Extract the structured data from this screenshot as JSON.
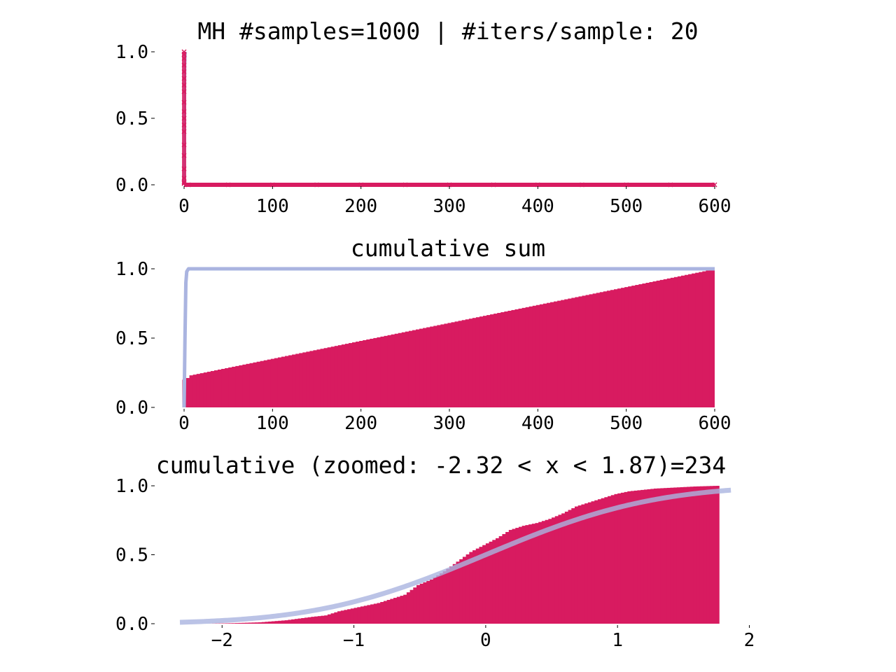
{
  "colors": {
    "samples": "#d81b60",
    "reference": "#aab4e0",
    "background": "#ffffff",
    "text": "#000000"
  },
  "chart_data": [
    {
      "type": "scatter",
      "title": "MH #samples=1000 | #iters/sample: 20",
      "xlim": [
        0,
        600
      ],
      "ylim": [
        0,
        1
      ],
      "xticks": [
        0,
        100,
        200,
        300,
        400,
        500,
        600
      ],
      "xtick_labels": [
        "0",
        "100",
        "200",
        "300",
        "400",
        "500",
        "600"
      ],
      "yticks": [
        0,
        0.5,
        1
      ],
      "ytick_labels": [
        "0.0",
        "0.5",
        "1.0"
      ],
      "grid": false,
      "series": [
        {
          "marker": "x",
          "color": "#d81b60",
          "description_points": [
            [
              0,
              1.0
            ],
            [
              0,
              0.98
            ],
            [
              0,
              0.95
            ],
            [
              0,
              0.9
            ],
            [
              0,
              0.85
            ],
            [
              0,
              0.8
            ],
            [
              0,
              0.75
            ],
            [
              0,
              0.7
            ],
            [
              0,
              0.62
            ],
            [
              0,
              0.55
            ],
            [
              0,
              0.5
            ],
            [
              0,
              0.45
            ],
            [
              0,
              0.4
            ],
            [
              0,
              0.3
            ],
            [
              0,
              0.22
            ],
            [
              0,
              0.12
            ],
            [
              0,
              0.05
            ],
            [
              0,
              0.02
            ],
            [
              0,
              0.01
            ],
            [
              5,
              0.0
            ],
            [
              50,
              0.0
            ],
            [
              100,
              0.0
            ],
            [
              150,
              0.0
            ],
            [
              200,
              0.0
            ],
            [
              250,
              0.0
            ],
            [
              300,
              0.0
            ],
            [
              350,
              0.0
            ],
            [
              400,
              0.0
            ],
            [
              450,
              0.0
            ],
            [
              500,
              0.0
            ],
            [
              550,
              0.0
            ],
            [
              600,
              0.0
            ]
          ]
        }
      ]
    },
    {
      "type": "bar",
      "title": "cumulative sum",
      "xlim": [
        0,
        600
      ],
      "ylim": [
        0,
        1
      ],
      "xticks": [
        0,
        100,
        200,
        300,
        400,
        500,
        600
      ],
      "xtick_labels": [
        "0",
        "100",
        "200",
        "300",
        "400",
        "500",
        "600"
      ],
      "yticks": [
        0,
        0.5,
        1
      ],
      "ytick_labels": [
        "0.0",
        "0.5",
        "1.0"
      ],
      "grid": false,
      "bar_profile": [
        [
          0,
          0.2
        ],
        [
          5,
          0.23
        ],
        [
          600,
          1.0
        ]
      ],
      "reference_line": [
        [
          0,
          0.0
        ],
        [
          1,
          0.5
        ],
        [
          2,
          0.9
        ],
        [
          3,
          0.98
        ],
        [
          5,
          1.0
        ],
        [
          600,
          1.0
        ]
      ]
    },
    {
      "type": "area",
      "title": "cumulative (zoomed: -2.32 < x < 1.87)=234",
      "xlim": [
        -2.32,
        1.87
      ],
      "ylim": [
        0,
        1
      ],
      "xticks": [
        -2,
        -1,
        0,
        1,
        2
      ],
      "xtick_labels": [
        "−2",
        "−1",
        "0",
        "1",
        "2"
      ],
      "yticks": [
        0,
        0.5,
        1
      ],
      "ytick_labels": [
        "0.0",
        "0.5",
        "1.0"
      ],
      "grid": false,
      "empirical_cdf": [
        [
          -2.1,
          0.0
        ],
        [
          -1.9,
          0.004
        ],
        [
          -1.7,
          0.01
        ],
        [
          -1.5,
          0.025
        ],
        [
          -1.3,
          0.05
        ],
        [
          -1.2,
          0.06
        ],
        [
          -1.1,
          0.09
        ],
        [
          -1.0,
          0.11
        ],
        [
          -0.9,
          0.13
        ],
        [
          -0.8,
          0.15
        ],
        [
          -0.7,
          0.18
        ],
        [
          -0.6,
          0.21
        ],
        [
          -0.5,
          0.28
        ],
        [
          -0.4,
          0.32
        ],
        [
          -0.3,
          0.38
        ],
        [
          -0.2,
          0.45
        ],
        [
          -0.1,
          0.52
        ],
        [
          0.0,
          0.57
        ],
        [
          0.1,
          0.62
        ],
        [
          0.2,
          0.68
        ],
        [
          0.3,
          0.71
        ],
        [
          0.4,
          0.73
        ],
        [
          0.5,
          0.76
        ],
        [
          0.6,
          0.8
        ],
        [
          0.7,
          0.85
        ],
        [
          0.8,
          0.88
        ],
        [
          0.9,
          0.91
        ],
        [
          1.0,
          0.94
        ],
        [
          1.1,
          0.96
        ],
        [
          1.2,
          0.97
        ],
        [
          1.3,
          0.98
        ],
        [
          1.4,
          0.985
        ],
        [
          1.5,
          0.99
        ],
        [
          1.6,
          0.995
        ],
        [
          1.77,
          1.0
        ]
      ],
      "reference_line": "normal_cdf"
    }
  ]
}
